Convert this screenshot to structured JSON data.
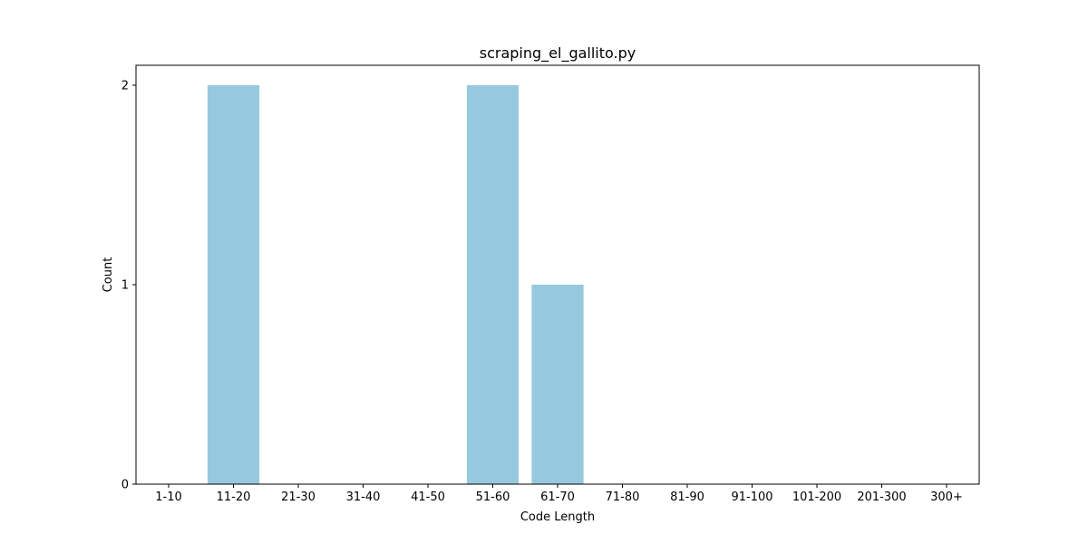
{
  "chart_data": {
    "type": "bar",
    "title": "scraping_el_gallito.py",
    "xlabel": "Code Length",
    "ylabel": "Count",
    "categories": [
      "1-10",
      "11-20",
      "21-30",
      "31-40",
      "41-50",
      "51-60",
      "61-70",
      "71-80",
      "81-90",
      "91-100",
      "101-200",
      "201-300",
      "300+"
    ],
    "values": [
      0,
      2,
      0,
      0,
      0,
      2,
      1,
      0,
      0,
      0,
      0,
      0,
      0
    ],
    "yticks": [
      0,
      1,
      2
    ],
    "ylim": [
      0,
      2.1
    ],
    "bar_color": "#96c9dd",
    "grid": false,
    "legend": "none"
  }
}
